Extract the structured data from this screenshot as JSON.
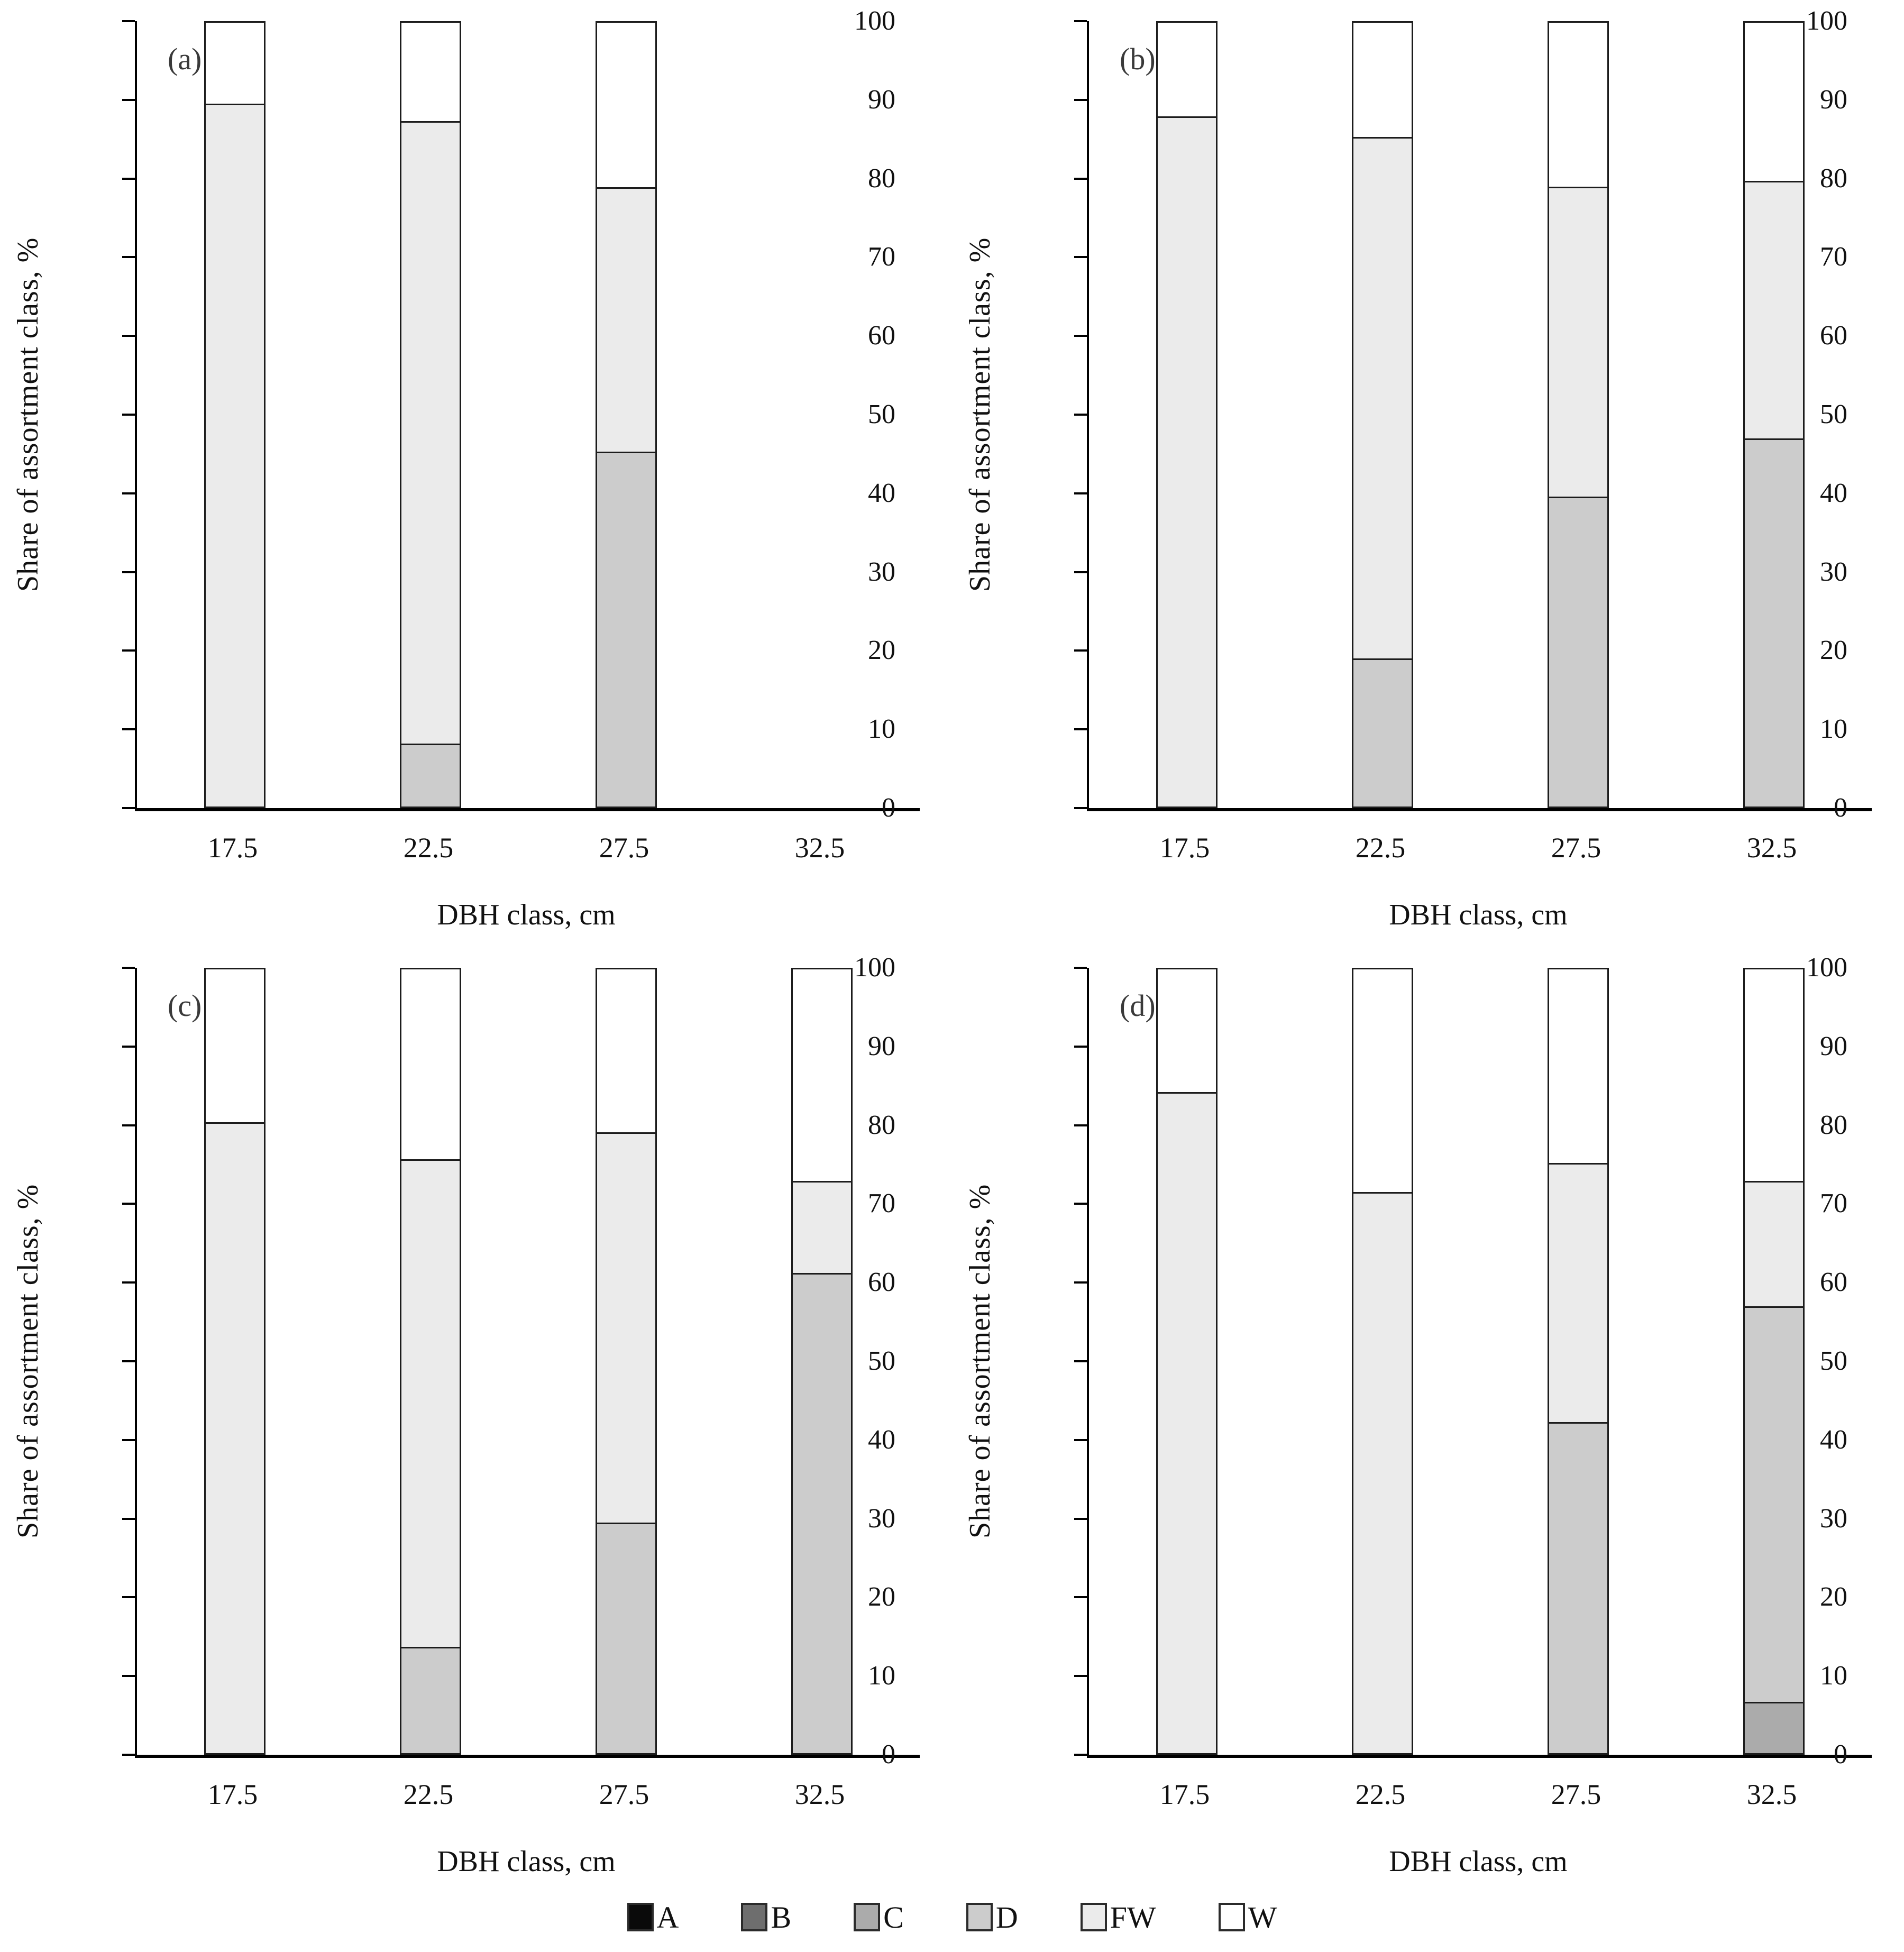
{
  "figure": {
    "ylabel": "Share of assortment class, %",
    "xlabel": "DBH class, cm",
    "panel_labels": [
      "(a)",
      "(b)",
      "(c)",
      "(d)"
    ]
  },
  "legend": {
    "position": "bottom-center",
    "items": [
      {
        "label": "A",
        "color": "#0a0a0a"
      },
      {
        "label": "B",
        "color": "#6e6e6e"
      },
      {
        "label": "C",
        "color": "#ababab"
      },
      {
        "label": "D",
        "color": "#cccccc"
      },
      {
        "label": "FW",
        "color": "#ebebeb"
      },
      {
        "label": "W",
        "color": "#ffffff"
      }
    ]
  },
  "chart_data": [
    {
      "type": "bar",
      "stacked": true,
      "panel": "(a)",
      "categories": [
        "17.5",
        "22.5",
        "27.5",
        "32.5"
      ],
      "xlabel": "DBH class, cm",
      "ylabel": "Share of assortment class, %",
      "ylim": [
        0,
        100
      ],
      "yticks": [
        0,
        10,
        20,
        30,
        40,
        50,
        60,
        70,
        80,
        90,
        100
      ],
      "grid": false,
      "series": [
        {
          "name": "A",
          "values": [
            0,
            0,
            0,
            0
          ]
        },
        {
          "name": "B",
          "values": [
            0,
            0,
            0,
            0
          ]
        },
        {
          "name": "C",
          "values": [
            0,
            0,
            0,
            0
          ]
        },
        {
          "name": "D",
          "values": [
            0,
            8.2,
            45.3,
            0
          ]
        },
        {
          "name": "FW",
          "values": [
            89.5,
            79.1,
            33.6,
            0
          ]
        },
        {
          "name": "W",
          "values": [
            10.5,
            12.7,
            21.1,
            0
          ]
        }
      ]
    },
    {
      "type": "bar",
      "stacked": true,
      "panel": "(b)",
      "categories": [
        "17.5",
        "22.5",
        "27.5",
        "32.5"
      ],
      "xlabel": "DBH class, cm",
      "ylabel": "Share of assortment class, %",
      "ylim": [
        0,
        100
      ],
      "yticks": [
        0,
        10,
        20,
        30,
        40,
        50,
        60,
        70,
        80,
        90,
        100
      ],
      "grid": false,
      "series": [
        {
          "name": "A",
          "values": [
            0,
            0,
            0,
            0
          ]
        },
        {
          "name": "B",
          "values": [
            0,
            0,
            0,
            0
          ]
        },
        {
          "name": "C",
          "values": [
            0,
            0,
            0,
            0
          ]
        },
        {
          "name": "D",
          "values": [
            0,
            19.0,
            39.6,
            47.0
          ]
        },
        {
          "name": "FW",
          "values": [
            87.9,
            66.3,
            39.4,
            32.7
          ]
        },
        {
          "name": "W",
          "values": [
            12.1,
            14.7,
            21.0,
            20.3
          ]
        }
      ]
    },
    {
      "type": "bar",
      "stacked": true,
      "panel": "(c)",
      "categories": [
        "17.5",
        "22.5",
        "27.5",
        "32.5"
      ],
      "xlabel": "DBH class, cm",
      "ylabel": "Share of assortment class, %",
      "ylim": [
        0,
        100
      ],
      "yticks": [
        0,
        10,
        20,
        30,
        40,
        50,
        60,
        70,
        80,
        90,
        100
      ],
      "grid": false,
      "series": [
        {
          "name": "A",
          "values": [
            0,
            0,
            0,
            0
          ]
        },
        {
          "name": "B",
          "values": [
            0,
            0,
            0,
            0
          ]
        },
        {
          "name": "C",
          "values": [
            0,
            0,
            0,
            0
          ]
        },
        {
          "name": "D",
          "values": [
            0,
            13.7,
            29.5,
            61.2
          ]
        },
        {
          "name": "FW",
          "values": [
            80.4,
            62.0,
            49.6,
            11.7
          ]
        },
        {
          "name": "W",
          "values": [
            19.6,
            24.3,
            20.9,
            27.1
          ]
        }
      ]
    },
    {
      "type": "bar",
      "stacked": true,
      "panel": "(d)",
      "categories": [
        "17.5",
        "22.5",
        "27.5",
        "32.5"
      ],
      "xlabel": "DBH class, cm",
      "ylabel": "Share of assortment class, %",
      "ylim": [
        0,
        100
      ],
      "yticks": [
        0,
        10,
        20,
        30,
        40,
        50,
        60,
        70,
        80,
        90,
        100
      ],
      "grid": false,
      "series": [
        {
          "name": "A",
          "values": [
            0,
            0,
            0,
            0
          ]
        },
        {
          "name": "B",
          "values": [
            0,
            0,
            0,
            0
          ]
        },
        {
          "name": "C",
          "values": [
            0,
            0,
            0,
            6.7
          ]
        },
        {
          "name": "D",
          "values": [
            0,
            0,
            42.3,
            50.3
          ]
        },
        {
          "name": "FW",
          "values": [
            84.2,
            71.5,
            32.9,
            15.9
          ]
        },
        {
          "name": "W",
          "values": [
            15.8,
            28.5,
            24.8,
            27.1
          ]
        }
      ]
    }
  ]
}
